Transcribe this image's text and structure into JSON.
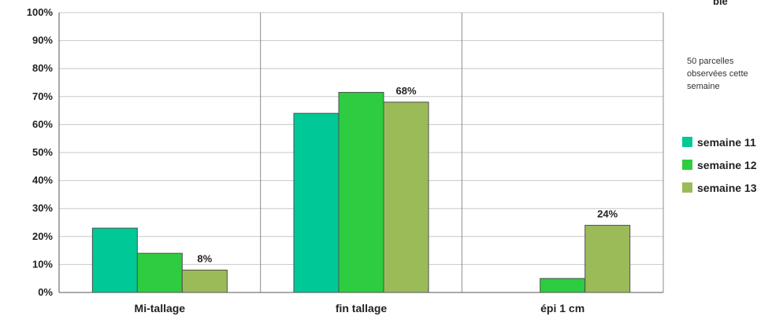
{
  "corner_title": "blé",
  "note": "50 parcelles observées cette semaine",
  "colors": {
    "semaine 11": "#00c896",
    "semaine 12": "#2ecc40",
    "semaine 13": "#9bbb59"
  },
  "chart_data": {
    "type": "bar",
    "categories": [
      "Mi-tallage",
      "fin tallage",
      "épi 1 cm"
    ],
    "series": [
      {
        "name": "semaine 11",
        "values": [
          23,
          64,
          0
        ]
      },
      {
        "name": "semaine 12",
        "values": [
          14,
          71.5,
          5
        ]
      },
      {
        "name": "semaine 13",
        "values": [
          8,
          68,
          24
        ]
      }
    ],
    "data_labels": [
      {
        "series": "semaine 13",
        "category": "Mi-tallage",
        "text": "8%"
      },
      {
        "series": "semaine 13",
        "category": "fin tallage",
        "text": "68%"
      },
      {
        "series": "semaine 13",
        "category": "épi 1 cm",
        "text": "24%"
      }
    ],
    "yticks": [
      "0%",
      "10%",
      "20%",
      "30%",
      "40%",
      "50%",
      "60%",
      "70%",
      "80%",
      "90%",
      "100%"
    ],
    "ylim": [
      0,
      100
    ],
    "grid": true,
    "legend_position": "right"
  }
}
